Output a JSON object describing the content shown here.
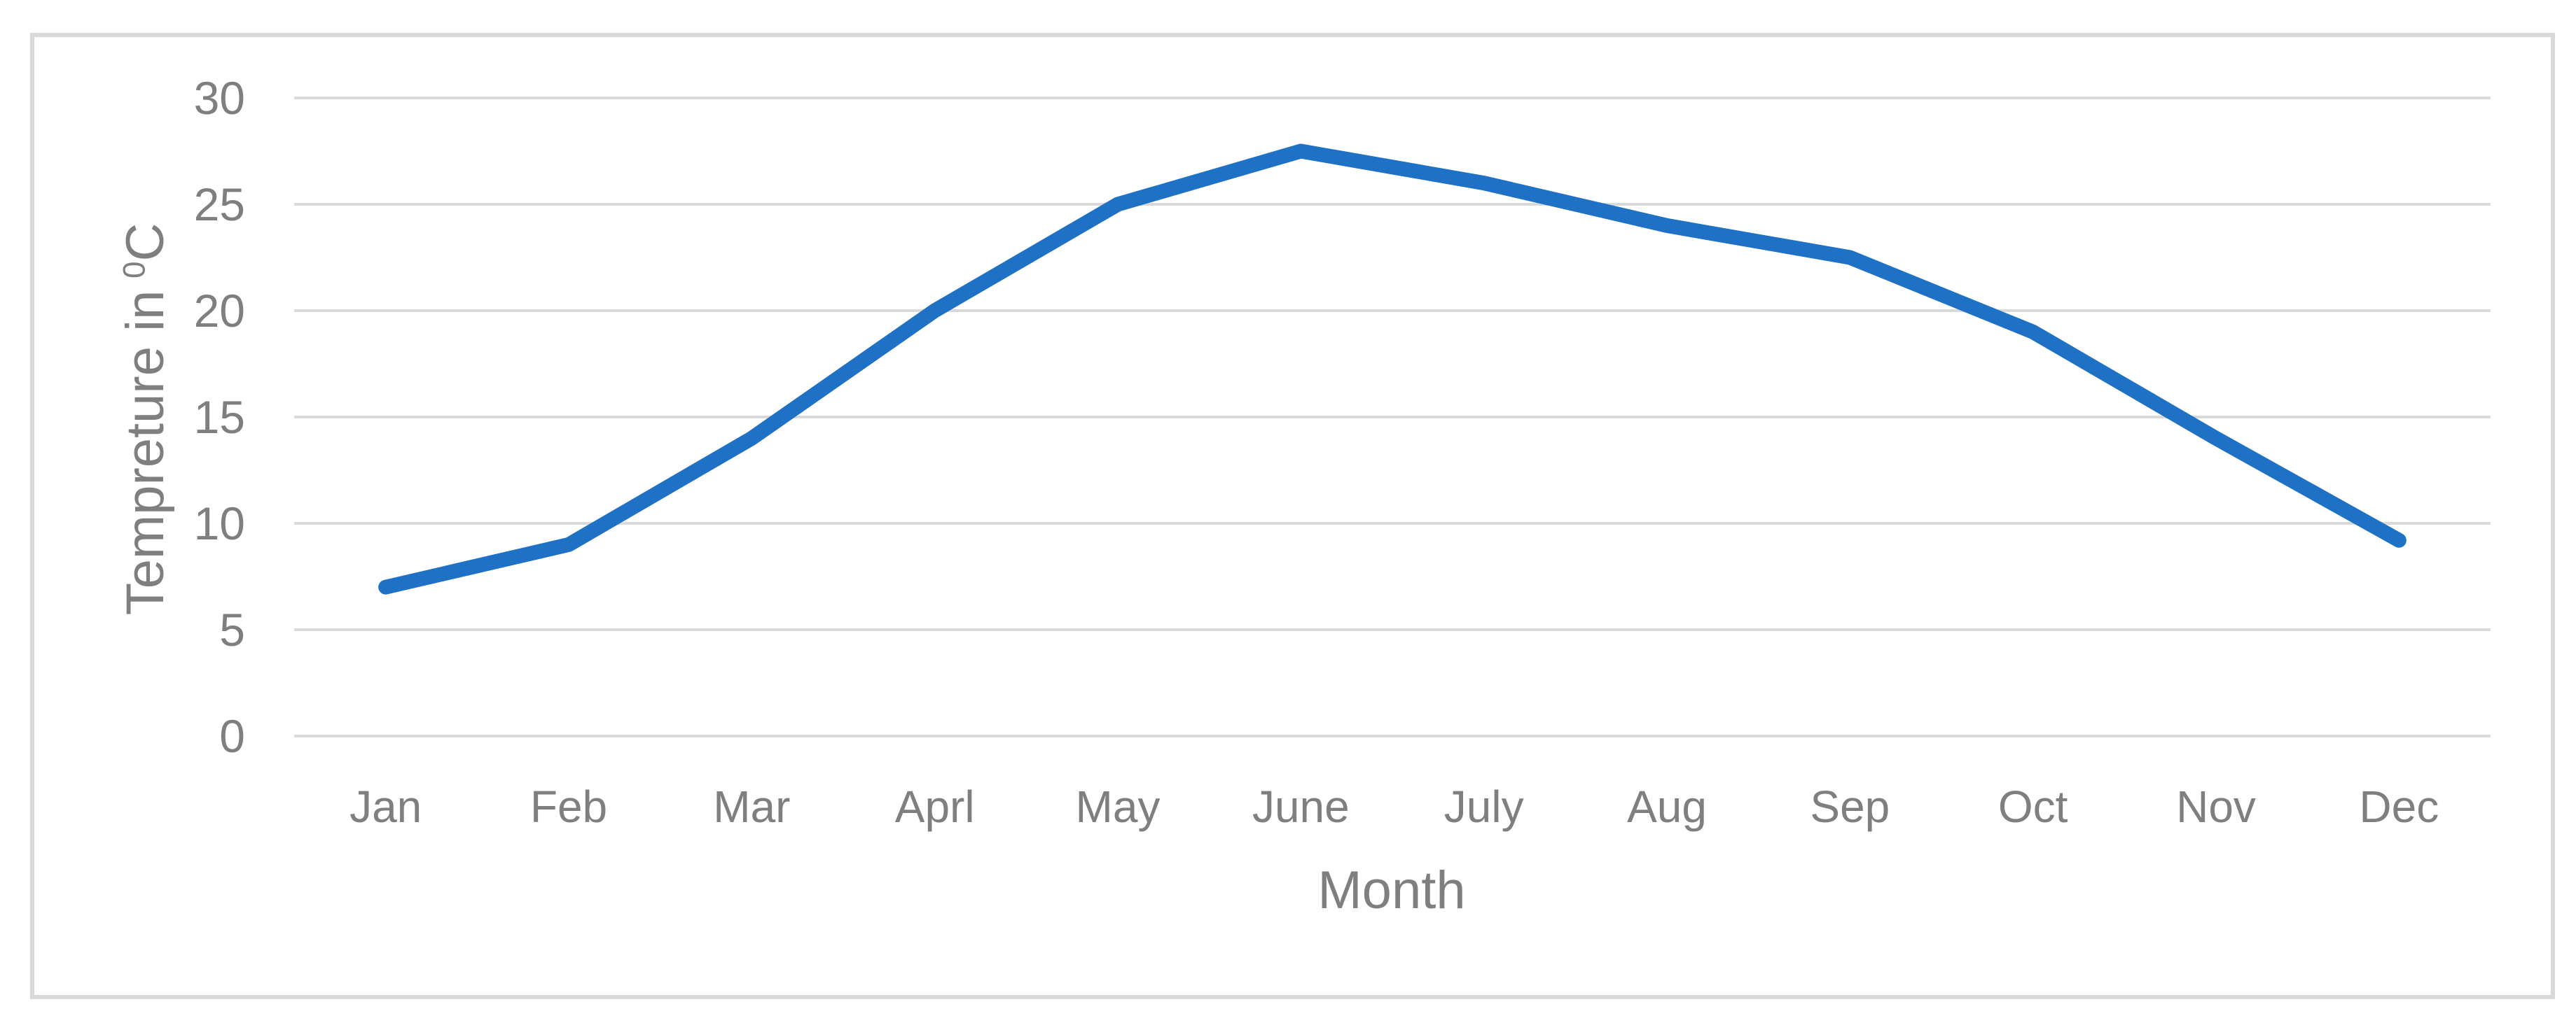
{
  "chart": {
    "y_axis_title": {
      "prefix": "Tempreture in",
      "superscript": "0",
      "unit": "C"
    },
    "x_axis_title": "Month"
  },
  "chart_data": {
    "type": "line",
    "title": "",
    "categories": [
      "Jan",
      "Feb",
      "Mar",
      "Aprl",
      "May",
      "June",
      "July",
      "Aug",
      "Sep",
      "Oct",
      "Nov",
      "Dec"
    ],
    "values": [
      7,
      9,
      14,
      20,
      25,
      27.5,
      26,
      24,
      22.5,
      19,
      14,
      9.2
    ],
    "xlabel": "Month",
    "ylabel": "Tempreture in 0C",
    "ylim": [
      0,
      30
    ],
    "yticks": [
      0,
      5,
      10,
      15,
      20,
      25,
      30
    ],
    "grid": "horizontal",
    "legend": "none",
    "colors": {
      "line": "#1E71C5",
      "gridline": "#D9D9D9",
      "frame_border": "#D9D9D9",
      "labels": "#7F7F7F",
      "background": "#FFFFFF"
    }
  }
}
